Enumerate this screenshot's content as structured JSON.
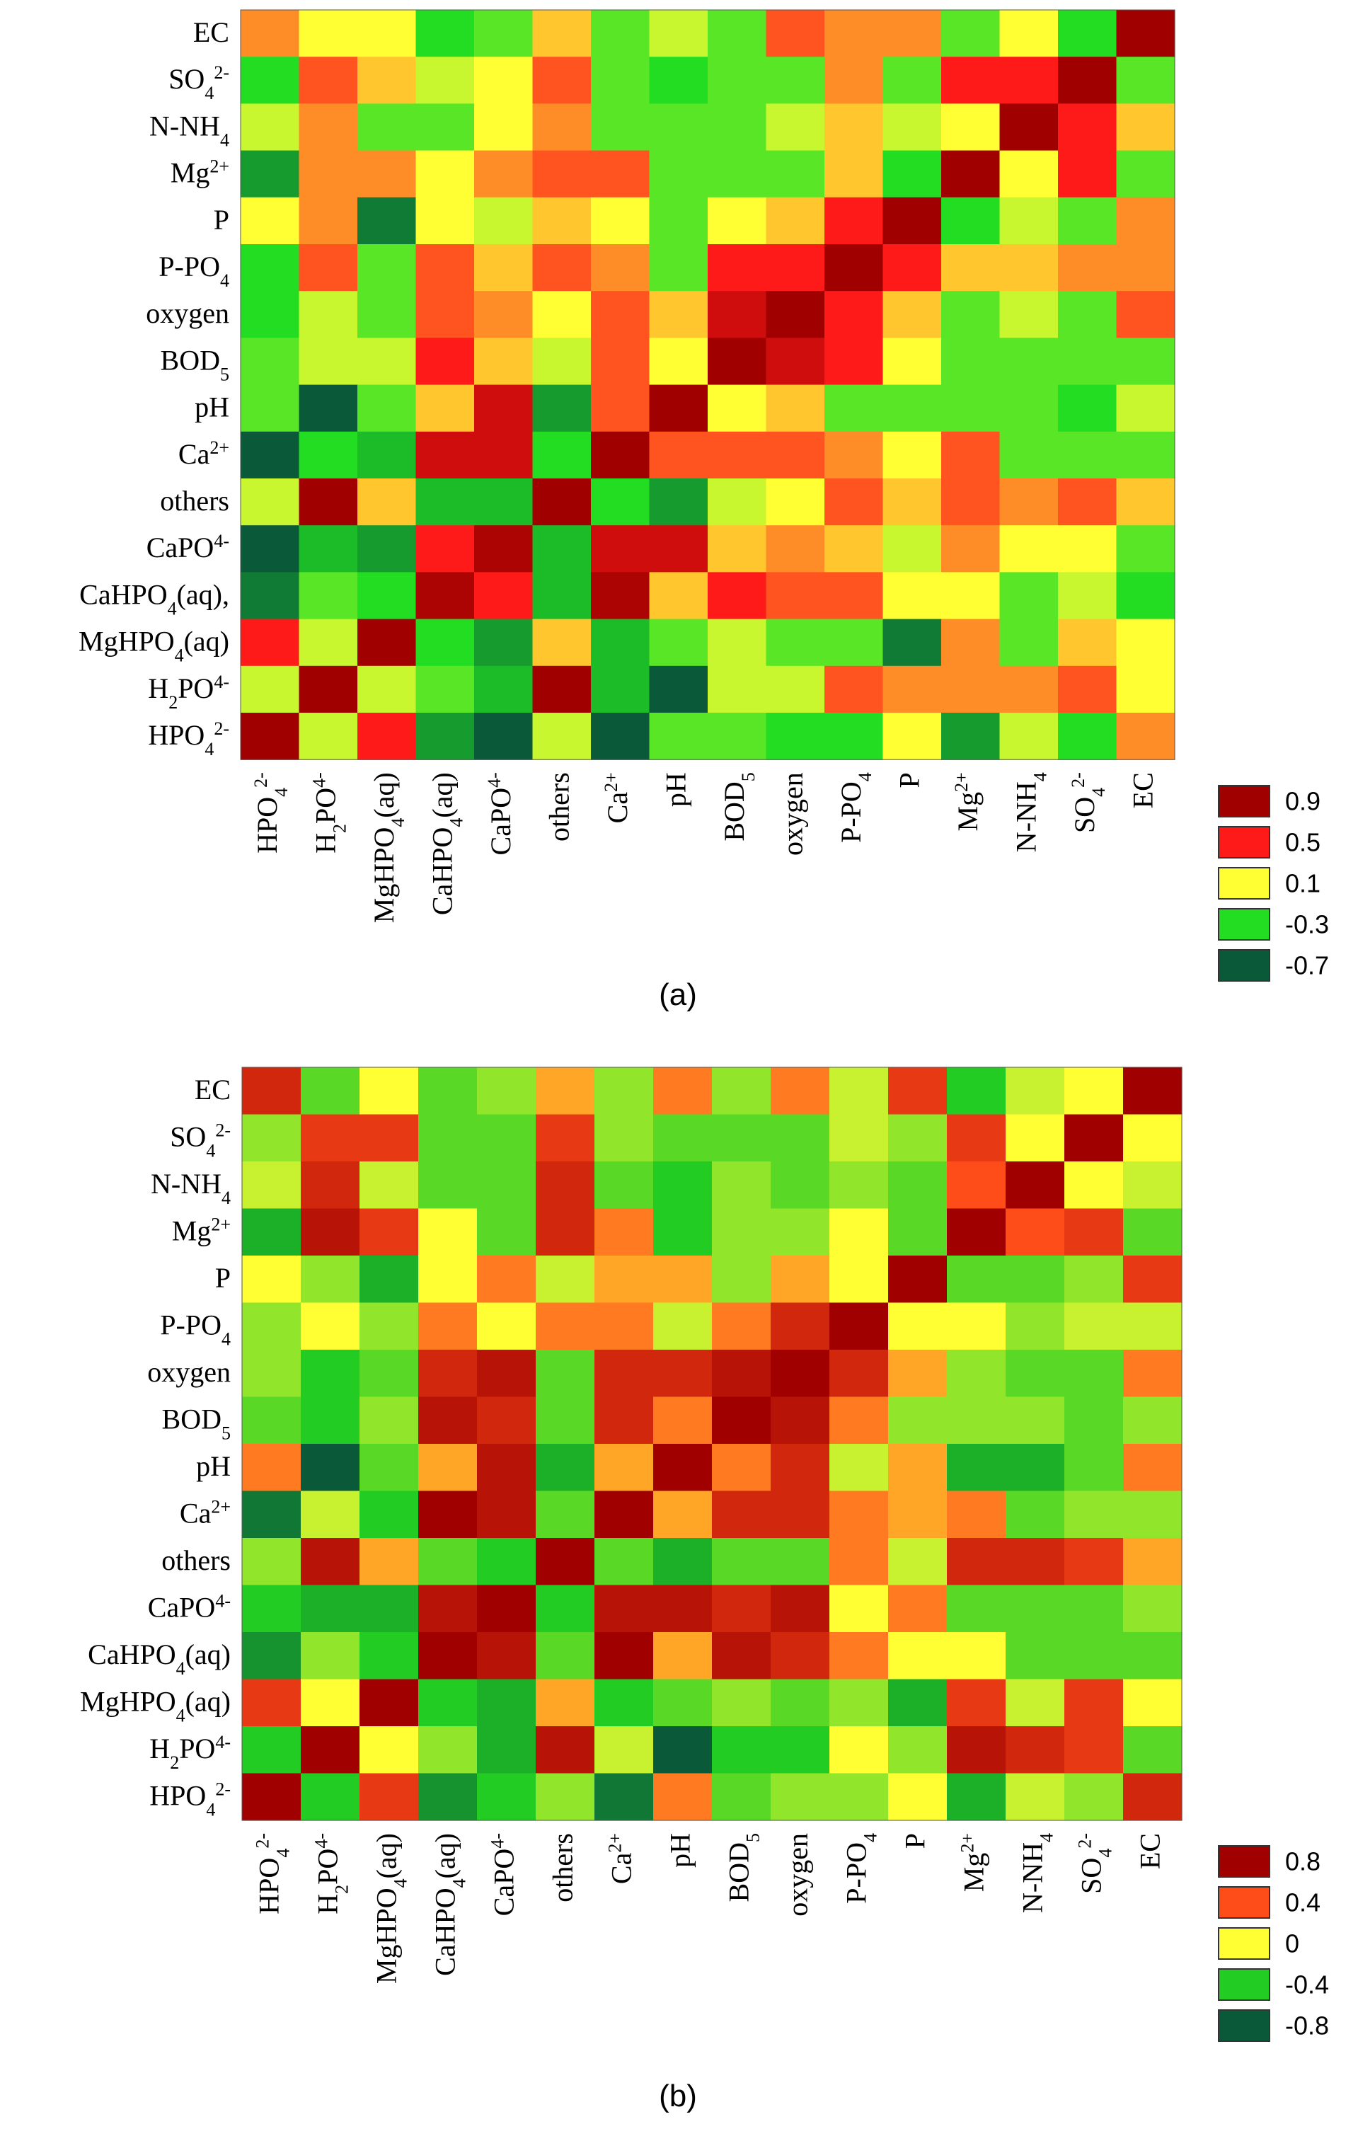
{
  "chart_data": [
    {
      "type": "heatmap",
      "caption": "(a)",
      "row_labels": [
        "EC",
        "SO₄²⁻",
        "N-NH₄",
        "Mg²⁺",
        "P",
        "P-PO₄",
        "oxygen",
        "BOD₅",
        "pH",
        "Ca²⁺",
        "others",
        "CaPO⁴⁻",
        "CaHPO₄(aq),",
        "MgHPO₄(aq)",
        "H₂PO⁴⁻",
        "HPO₄²⁻"
      ],
      "col_labels": [
        "HPO₄²⁻",
        "H₂PO⁴⁻",
        "MgHPO₄(aq)",
        "CaHPO₄(aq)",
        "CaPO⁴⁻",
        "others",
        "Ca²⁺",
        "pH",
        "BOD₅",
        "oxygen",
        "P-PO₄",
        "P",
        "Mg²⁺",
        "N-NH₄",
        "SO₄²⁻",
        "EC"
      ],
      "legend": [
        {
          "label": "0.9",
          "color": "#a00000"
        },
        {
          "label": "0.5",
          "color": "#ff1a1a"
        },
        {
          "label": "0.1",
          "color": "#ffff33"
        },
        {
          "label": "-0.3",
          "color": "#22dd22"
        },
        {
          "label": "-0.7",
          "color": "#0a5a3a"
        }
      ],
      "values": [
        [
          0.3,
          0.1,
          0.1,
          -0.3,
          -0.2,
          0.2,
          -0.2,
          0.0,
          -0.2,
          0.4,
          0.3,
          0.3,
          -0.2,
          0.1,
          -0.3,
          0.95
        ],
        [
          -0.3,
          0.4,
          0.2,
          0.0,
          0.1,
          0.4,
          -0.2,
          -0.3,
          -0.2,
          -0.2,
          0.3,
          -0.2,
          0.5,
          0.5,
          0.95,
          -0.2
        ],
        [
          0.0,
          0.3,
          -0.2,
          -0.2,
          0.1,
          0.3,
          -0.2,
          -0.2,
          -0.2,
          0.0,
          0.2,
          0.0,
          0.1,
          0.95,
          0.5,
          0.2
        ],
        [
          -0.5,
          0.3,
          0.3,
          0.1,
          0.3,
          0.4,
          0.4,
          -0.2,
          -0.2,
          -0.2,
          0.2,
          -0.3,
          0.95,
          0.1,
          0.5,
          -0.2
        ],
        [
          0.1,
          0.3,
          -0.6,
          0.1,
          0.0,
          0.2,
          0.1,
          -0.2,
          0.1,
          0.2,
          0.5,
          0.95,
          -0.3,
          0.0,
          -0.2,
          0.3
        ],
        [
          -0.3,
          0.4,
          -0.2,
          0.4,
          0.2,
          0.4,
          0.3,
          -0.2,
          0.5,
          0.5,
          0.95,
          0.5,
          0.2,
          0.2,
          0.3,
          0.3
        ],
        [
          -0.3,
          0.0,
          -0.2,
          0.4,
          0.3,
          0.1,
          0.4,
          0.2,
          0.7,
          0.95,
          0.5,
          0.2,
          -0.2,
          0.0,
          -0.2,
          0.4
        ],
        [
          -0.2,
          0.0,
          0.0,
          0.5,
          0.2,
          0.0,
          0.4,
          0.1,
          0.95,
          0.7,
          0.5,
          0.1,
          -0.2,
          -0.2,
          -0.2,
          -0.2
        ],
        [
          -0.2,
          -0.7,
          -0.2,
          0.2,
          0.7,
          -0.5,
          0.4,
          0.95,
          0.1,
          0.2,
          -0.2,
          -0.2,
          -0.2,
          -0.2,
          -0.3,
          0.0
        ],
        [
          -0.7,
          -0.3,
          -0.4,
          0.7,
          0.7,
          -0.3,
          0.95,
          0.4,
          0.4,
          0.4,
          0.3,
          0.1,
          0.4,
          -0.2,
          -0.2,
          -0.2
        ],
        [
          0.0,
          0.95,
          0.2,
          -0.4,
          -0.4,
          0.95,
          -0.3,
          -0.5,
          0.0,
          0.1,
          0.4,
          0.2,
          0.4,
          0.3,
          0.4,
          0.2
        ],
        [
          -0.7,
          -0.4,
          -0.5,
          0.5,
          0.85,
          -0.4,
          0.7,
          0.7,
          0.2,
          0.3,
          0.2,
          0.0,
          0.3,
          0.1,
          0.1,
          -0.2
        ],
        [
          -0.6,
          -0.2,
          -0.3,
          0.85,
          0.5,
          -0.4,
          0.85,
          0.2,
          0.5,
          0.4,
          0.4,
          0.1,
          0.1,
          -0.2,
          0.0,
          -0.3
        ],
        [
          0.5,
          0.0,
          0.9,
          -0.3,
          -0.5,
          0.2,
          -0.4,
          -0.2,
          0.0,
          -0.2,
          -0.2,
          -0.6,
          0.3,
          -0.2,
          0.2,
          0.1
        ],
        [
          0.0,
          0.95,
          0.0,
          -0.2,
          -0.4,
          0.95,
          -0.4,
          -0.7,
          0.0,
          0.0,
          0.4,
          0.3,
          0.3,
          0.3,
          0.4,
          0.1
        ],
        [
          0.95,
          0.0,
          0.5,
          -0.5,
          -0.7,
          0.0,
          -0.7,
          -0.2,
          -0.2,
          -0.3,
          -0.3,
          0.1,
          -0.5,
          0.0,
          -0.3,
          0.3
        ]
      ]
    },
    {
      "type": "heatmap",
      "caption": "(b)",
      "row_labels": [
        "EC",
        "SO₄²⁻",
        "N-NH₄",
        "Mg²⁺",
        "P",
        "P-PO₄",
        "oxygen",
        "BOD₅",
        "pH",
        "Ca²⁺",
        "others",
        "CaPO⁴⁻",
        "CaHPO₄(aq)",
        "MgHPO₄(aq)",
        "H₂PO⁴⁻",
        "HPO₄²⁻"
      ],
      "col_labels": [
        "HPO₄²⁻",
        "H₂PO⁴⁻",
        "MgHPO₄(aq)",
        "CaHPO₄(aq)",
        "CaPO⁴⁻",
        "others",
        "Ca²⁺",
        "pH",
        "BOD₅",
        "oxygen",
        "P-PO₄",
        "P",
        "Mg²⁺",
        "N-NH₄",
        "SO₄²⁻",
        "EC"
      ],
      "legend": [
        {
          "label": "0.8",
          "color": "#a00000"
        },
        {
          "label": "0.4",
          "color": "#ff4d1a"
        },
        {
          "label": "0",
          "color": "#ffff33"
        },
        {
          "label": "-0.4",
          "color": "#22cc22"
        },
        {
          "label": "-0.8",
          "color": "#0a5a3a"
        }
      ],
      "values": [
        [
          0.6,
          -0.3,
          0.0,
          -0.3,
          -0.2,
          0.2,
          -0.2,
          0.3,
          -0.2,
          0.3,
          -0.1,
          0.5,
          -0.4,
          -0.1,
          0.0,
          0.95
        ],
        [
          -0.2,
          0.5,
          0.5,
          -0.3,
          -0.3,
          0.5,
          -0.2,
          -0.3,
          -0.3,
          -0.3,
          -0.1,
          -0.2,
          0.5,
          0.0,
          0.95,
          0.0
        ],
        [
          -0.1,
          0.6,
          -0.1,
          -0.3,
          -0.3,
          0.6,
          -0.3,
          -0.4,
          -0.2,
          -0.3,
          -0.2,
          -0.3,
          0.4,
          0.95,
          0.0,
          -0.1
        ],
        [
          -0.5,
          0.7,
          0.5,
          0.0,
          -0.3,
          0.6,
          0.3,
          -0.4,
          -0.2,
          -0.2,
          0.0,
          -0.3,
          0.95,
          0.4,
          0.5,
          -0.3
        ],
        [
          0.0,
          -0.2,
          -0.5,
          0.0,
          0.3,
          -0.1,
          0.2,
          0.2,
          -0.2,
          0.2,
          0.0,
          0.95,
          -0.3,
          -0.3,
          -0.2,
          0.5
        ],
        [
          -0.2,
          0.0,
          -0.2,
          0.3,
          0.0,
          0.3,
          0.3,
          -0.1,
          0.3,
          0.6,
          0.95,
          0.0,
          0.0,
          -0.2,
          -0.1,
          -0.1
        ],
        [
          -0.2,
          -0.4,
          -0.3,
          0.6,
          0.7,
          -0.3,
          0.6,
          0.6,
          0.7,
          0.9,
          0.6,
          0.2,
          -0.2,
          -0.3,
          -0.3,
          0.3
        ],
        [
          -0.3,
          -0.4,
          -0.2,
          0.7,
          0.6,
          -0.3,
          0.6,
          0.3,
          0.95,
          0.7,
          0.3,
          -0.2,
          -0.2,
          -0.2,
          -0.3,
          -0.2
        ],
        [
          0.3,
          -0.8,
          -0.3,
          0.2,
          0.7,
          -0.5,
          0.2,
          0.95,
          0.3,
          0.6,
          -0.1,
          0.2,
          -0.5,
          -0.5,
          -0.3,
          0.3
        ],
        [
          -0.7,
          -0.1,
          -0.4,
          0.8,
          0.7,
          -0.3,
          0.9,
          0.2,
          0.6,
          0.6,
          0.3,
          0.2,
          0.3,
          -0.3,
          -0.2,
          -0.2
        ],
        [
          -0.2,
          0.7,
          0.2,
          -0.3,
          -0.4,
          0.95,
          -0.3,
          -0.5,
          -0.3,
          -0.3,
          0.3,
          -0.1,
          0.6,
          0.6,
          0.5,
          0.2
        ],
        [
          -0.4,
          -0.5,
          -0.5,
          0.7,
          0.85,
          -0.4,
          0.7,
          0.7,
          0.6,
          0.7,
          0.0,
          0.3,
          -0.3,
          -0.3,
          -0.3,
          -0.2
        ],
        [
          -0.6,
          -0.2,
          -0.4,
          0.85,
          0.7,
          -0.3,
          0.8,
          0.2,
          0.7,
          0.6,
          0.3,
          0.0,
          0.0,
          -0.3,
          -0.3,
          -0.3
        ],
        [
          0.5,
          0.0,
          0.9,
          -0.4,
          -0.5,
          0.2,
          -0.4,
          -0.3,
          -0.2,
          -0.3,
          -0.2,
          -0.5,
          0.5,
          -0.1,
          0.5,
          0.0
        ],
        [
          -0.4,
          0.95,
          0.0,
          -0.2,
          -0.5,
          0.7,
          -0.1,
          -0.8,
          -0.4,
          -0.4,
          0.0,
          -0.2,
          0.7,
          0.6,
          0.5,
          -0.3
        ],
        [
          0.95,
          -0.4,
          0.5,
          -0.6,
          -0.4,
          -0.2,
          -0.7,
          0.3,
          -0.3,
          -0.2,
          -0.2,
          0.0,
          -0.5,
          -0.1,
          -0.2,
          0.6
        ]
      ]
    }
  ]
}
